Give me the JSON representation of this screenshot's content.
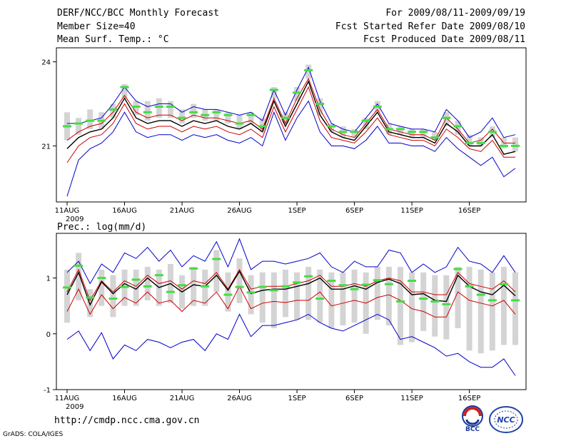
{
  "header": {
    "title": "DERF/NCC/BCC Monthly Forecast",
    "member_size": "Member Size=40",
    "variable": "Mean Surf. Temp.: °C",
    "period": "For 2009/08/11-2009/09/19",
    "started": "Fcst Started Refer Date 2009/08/10",
    "produced": "Fcst Produced Date 2009/08/11"
  },
  "precip_label": "Prec.: log(mm/d)",
  "footer": {
    "url": "http://cmdp.ncc.cma.gov.cn",
    "credit": "GrADS: COLA/IGES"
  },
  "logos": {
    "bcc_text": "BCC",
    "ncc_text": "NCC"
  },
  "colors": {
    "ensemble_mean": "#000000",
    "spread": "#cc0000",
    "extremes": "#0000cc",
    "box": "#d4d4d4",
    "median": "#44dd44"
  },
  "chart_data": [
    {
      "type": "line",
      "title": "Mean Surf. Temp.: °C",
      "ylim": [
        19,
        24.5
      ],
      "yticks": [
        21,
        24
      ],
      "x_days": 40,
      "xticks": [
        "11AUG",
        "16AUG",
        "21AUG",
        "26AUG",
        "1SEP",
        "6SEP",
        "11SEP",
        "16SEP"
      ],
      "xtick_year": "2009",
      "series": [
        {
          "name": "max",
          "values": [
            21.8,
            21.8,
            21.9,
            22,
            22.5,
            23.1,
            22.6,
            22.4,
            22.5,
            22.5,
            22.2,
            22.4,
            22.3,
            22.3,
            22.2,
            22.1,
            22.2,
            21.9,
            23,
            22.1,
            23,
            23.8,
            22.6,
            21.8,
            21.6,
            21.5,
            22,
            22.5,
            21.8,
            21.7,
            21.6,
            21.6,
            21.5,
            22.3,
            21.9,
            21.3,
            21.5,
            22,
            21.3,
            21.4
          ]
        },
        {
          "name": "upper",
          "values": [
            21.2,
            21.5,
            21.7,
            21.8,
            22.2,
            22.8,
            22.2,
            22,
            22.1,
            22.1,
            21.9,
            22.1,
            22,
            22,
            21.9,
            21.8,
            21.9,
            21.6,
            22.7,
            21.8,
            22.7,
            23.4,
            22.3,
            21.6,
            21.4,
            21.3,
            21.8,
            22.3,
            21.6,
            21.5,
            21.4,
            21.4,
            21.2,
            22,
            21.6,
            21.1,
            21.2,
            21.6,
            21.1,
            21.1
          ]
        },
        {
          "name": "mean",
          "values": [
            20.9,
            21.3,
            21.5,
            21.6,
            22,
            22.7,
            22,
            21.8,
            21.9,
            21.9,
            21.7,
            21.9,
            21.8,
            21.9,
            21.7,
            21.6,
            21.8,
            21.5,
            22.6,
            21.7,
            22.5,
            23.3,
            22.1,
            21.5,
            21.3,
            21.2,
            21.7,
            22.2,
            21.5,
            21.4,
            21.3,
            21.3,
            21.1,
            21.8,
            21.5,
            21,
            21,
            21.4,
            20.7,
            20.8
          ]
        },
        {
          "name": "lower",
          "values": [
            20.4,
            21,
            21.3,
            21.4,
            21.8,
            22.5,
            21.8,
            21.6,
            21.7,
            21.7,
            21.5,
            21.7,
            21.6,
            21.7,
            21.5,
            21.4,
            21.6,
            21.3,
            22.4,
            21.5,
            22.3,
            23.1,
            21.9,
            21.3,
            21.2,
            21.1,
            21.5,
            22,
            21.4,
            21.3,
            21.2,
            21.2,
            21,
            21.6,
            21.3,
            20.9,
            20.8,
            21.2,
            20.6,
            20.6
          ]
        },
        {
          "name": "min",
          "values": [
            19.2,
            20.5,
            20.9,
            21.1,
            21.5,
            22.2,
            21.5,
            21.3,
            21.4,
            21.4,
            21.2,
            21.4,
            21.3,
            21.4,
            21.2,
            21.1,
            21.3,
            21,
            22.2,
            21.2,
            22,
            22.6,
            21.5,
            21,
            21,
            20.9,
            21.2,
            21.7,
            21.1,
            21.1,
            21,
            21,
            20.8,
            21.3,
            20.9,
            20.6,
            20.3,
            20.6,
            19.9,
            20.2
          ]
        },
        {
          "name": "median",
          "values": [
            21.7,
            21.8,
            21.9,
            21.9,
            22.3,
            23.1,
            22.4,
            22.2,
            22.4,
            22.4,
            22,
            22.2,
            22.1,
            22.2,
            22.1,
            21.8,
            22.1,
            21.7,
            23,
            22,
            22.9,
            23.7,
            22.5,
            21.7,
            21.5,
            21.5,
            21.9,
            22.4,
            21.6,
            21.6,
            21.5,
            21.5,
            21.3,
            22,
            21.7,
            21.1,
            21.1,
            21.5,
            21,
            21
          ]
        },
        {
          "name": "box_low",
          "values": [
            21.2,
            21.4,
            21.6,
            21.6,
            22,
            22.7,
            22.1,
            21.9,
            22,
            22,
            21.8,
            22,
            21.9,
            21.9,
            21.8,
            21.6,
            21.8,
            21.5,
            22.7,
            21.8,
            22.6,
            23.4,
            22.1,
            21.5,
            21.3,
            21.3,
            21.6,
            22.2,
            21.4,
            21.4,
            21.3,
            21.3,
            21.2,
            21.7,
            21.4,
            21,
            21,
            21.3,
            20.9,
            20.8
          ]
        },
        {
          "name": "box_high",
          "values": [
            22.2,
            22,
            22.3,
            22.2,
            22.5,
            23.2,
            22.6,
            22.6,
            22.7,
            22.6,
            22.3,
            22.5,
            22.3,
            22.3,
            22.2,
            22.1,
            22.2,
            22,
            23.1,
            22.2,
            23.1,
            23.9,
            22.7,
            21.8,
            21.7,
            21.6,
            22,
            22.6,
            21.8,
            21.7,
            21.6,
            21.6,
            21.5,
            22.2,
            21.9,
            21.4,
            21.3,
            21.7,
            21.3,
            21.3
          ]
        }
      ]
    },
    {
      "type": "line",
      "title": "Prec.: log(mm/d)",
      "ylim": [
        -1,
        1.8
      ],
      "yticks": [
        -1,
        0,
        1
      ],
      "x_days": 40,
      "xticks": [
        "11AUG",
        "16AUG",
        "21AUG",
        "26AUG",
        "1SEP",
        "6SEP",
        "11SEP",
        "16SEP"
      ],
      "xtick_year": "2009",
      "series": [
        {
          "name": "max",
          "values": [
            1.1,
            1.3,
            0.9,
            1.25,
            1.1,
            1.45,
            1.35,
            1.55,
            1.3,
            1.5,
            1.2,
            1.4,
            1.3,
            1.65,
            1.2,
            1.7,
            1.15,
            1.3,
            1.3,
            1.25,
            1.3,
            1.35,
            1.45,
            1.2,
            1.1,
            1.3,
            1.2,
            1.2,
            1.5,
            1.45,
            1.1,
            1.25,
            1.1,
            1.2,
            1.55,
            1.3,
            1.25,
            1.1,
            1.4,
            1.1
          ]
        },
        {
          "name": "upper",
          "values": [
            0.75,
            1.15,
            0.6,
            0.95,
            0.75,
            0.95,
            0.85,
            1.05,
            0.9,
            0.95,
            0.8,
            0.95,
            0.9,
            1.1,
            0.8,
            1.15,
            0.8,
            0.85,
            0.85,
            0.85,
            0.9,
            0.95,
            1.05,
            0.85,
            0.85,
            0.9,
            0.85,
            0.95,
            1,
            0.95,
            0.75,
            0.75,
            0.7,
            0.7,
            1.1,
            0.9,
            0.85,
            0.8,
            0.95,
            0.75
          ]
        },
        {
          "name": "mean",
          "values": [
            0.7,
            1.1,
            0.52,
            0.93,
            0.72,
            0.9,
            0.8,
            1,
            0.83,
            0.9,
            0.75,
            0.88,
            0.85,
            1.05,
            0.78,
            1.12,
            0.72,
            0.78,
            0.8,
            0.8,
            0.85,
            0.9,
            1,
            0.8,
            0.8,
            0.86,
            0.8,
            0.92,
            0.98,
            0.9,
            0.7,
            0.72,
            0.6,
            0.58,
            1.05,
            0.85,
            0.75,
            0.7,
            0.87,
            0.68
          ]
        },
        {
          "name": "lower",
          "values": [
            0.4,
            0.8,
            0.35,
            0.7,
            0.45,
            0.65,
            0.55,
            0.75,
            0.55,
            0.6,
            0.4,
            0.6,
            0.55,
            0.75,
            0.45,
            0.85,
            0.45,
            0.55,
            0.58,
            0.56,
            0.6,
            0.6,
            0.75,
            0.5,
            0.55,
            0.6,
            0.55,
            0.65,
            0.7,
            0.6,
            0.45,
            0.4,
            0.3,
            0.3,
            0.75,
            0.6,
            0.55,
            0.5,
            0.6,
            0.35
          ]
        },
        {
          "name": "min",
          "values": [
            -0.1,
            0.05,
            -0.3,
            0.02,
            -0.45,
            -0.2,
            -0.3,
            -0.1,
            -0.15,
            -0.25,
            -0.15,
            -0.1,
            -0.3,
            0,
            -0.1,
            0.35,
            -0.05,
            0.15,
            0.15,
            0.2,
            0.25,
            0.35,
            0.2,
            0.1,
            0.05,
            0.15,
            0.25,
            0.35,
            0.25,
            -0.1,
            -0.05,
            -0.15,
            -0.25,
            -0.4,
            -0.35,
            -0.5,
            -0.6,
            -0.6,
            -0.45,
            -0.75
          ]
        },
        {
          "name": "median",
          "values": [
            0.83,
            1.22,
            0.65,
            1.0,
            0.63,
            0.84,
            0.97,
            0.85,
            1.05,
            0.75,
            0.87,
            1.17,
            0.85,
            1.34,
            0.7,
            0.84,
            0.74,
            0.84,
            0.78,
            0.85,
            0.92,
            1.03,
            0.63,
            0.95,
            0.87,
            0.8,
            0.88,
            0.96,
            0.89,
            0.58,
            0.95,
            0.63,
            0.58,
            0.53,
            1.16,
            0.85,
            0.7,
            0.6,
            0.89,
            0.6
          ]
        },
        {
          "name": "box_low",
          "values": [
            0.2,
            0.6,
            0.3,
            0.5,
            0.3,
            0.5,
            0.5,
            0.6,
            0.5,
            0.55,
            0.45,
            0.5,
            0.5,
            0.75,
            0.4,
            0.55,
            0.35,
            0.2,
            0.1,
            0.3,
            0.25,
            0.25,
            0.2,
            0.1,
            0.15,
            0.2,
            0.0,
            0.25,
            0.15,
            -0.2,
            -0.15,
            0.05,
            -0.05,
            -0.1,
            0.1,
            -0.3,
            -0.35,
            -0.3,
            -0.2,
            -0.2
          ]
        },
        {
          "name": "box_high",
          "values": [
            1.15,
            1.45,
            0.8,
            1.15,
            1.05,
            1.15,
            1.15,
            1.2,
            1.15,
            1.25,
            1.05,
            1.2,
            1.15,
            1.5,
            1.1,
            1.35,
            1.05,
            1.1,
            1.1,
            1.15,
            1.1,
            1.2,
            1.15,
            1.1,
            1.1,
            1.15,
            1.1,
            1.2,
            1.2,
            1.2,
            1.1,
            1.1,
            1.05,
            1.05,
            1.2,
            1.2,
            1.15,
            1.1,
            1.2,
            1.1
          ]
        }
      ]
    }
  ]
}
